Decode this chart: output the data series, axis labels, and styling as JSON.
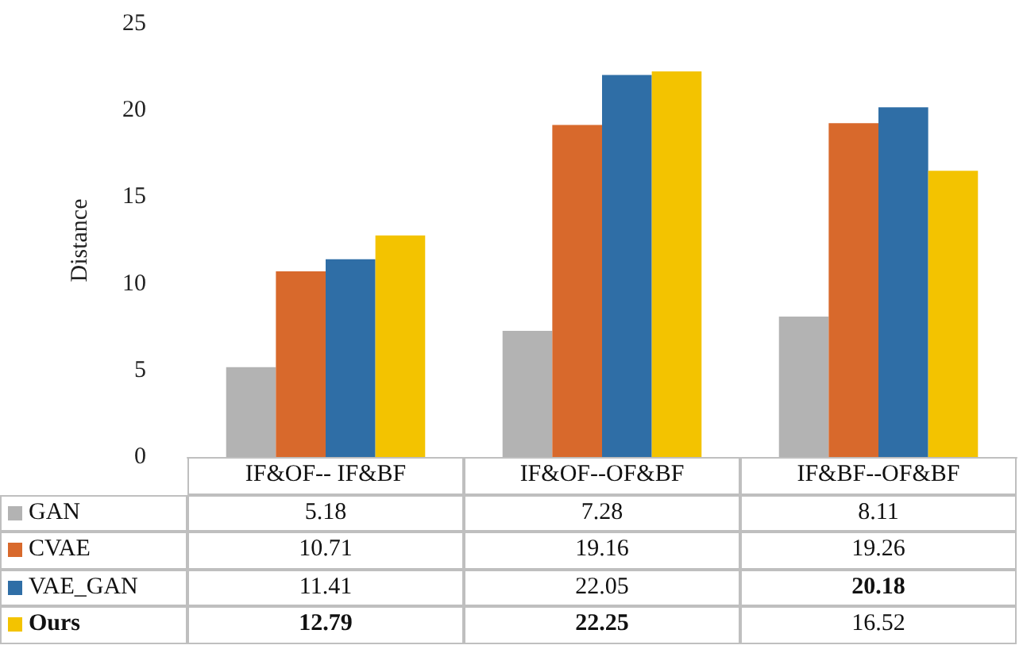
{
  "chart_data": {
    "type": "bar",
    "ylabel": "Distance",
    "categories": [
      "IF&OF-- IF&BF",
      "IF&OF--OF&BF",
      "IF&BF--OF&BF"
    ],
    "series": [
      {
        "name": "GAN",
        "color": "#b3b3b3",
        "values": [
          5.18,
          7.28,
          8.11
        ]
      },
      {
        "name": "CVAE",
        "color": "#d8692c",
        "values": [
          10.71,
          19.16,
          19.26
        ]
      },
      {
        "name": "VAE_GAN",
        "color": "#2f6ea6",
        "values": [
          11.41,
          22.05,
          20.18
        ]
      },
      {
        "name": "Ours",
        "color": "#f3c300",
        "values": [
          12.79,
          22.25,
          16.52
        ]
      }
    ],
    "ylim": [
      0,
      25
    ],
    "yticks": [
      0,
      5,
      10,
      15,
      20,
      25
    ],
    "grid": false,
    "legend": "bottom",
    "data_labels": true
  }
}
